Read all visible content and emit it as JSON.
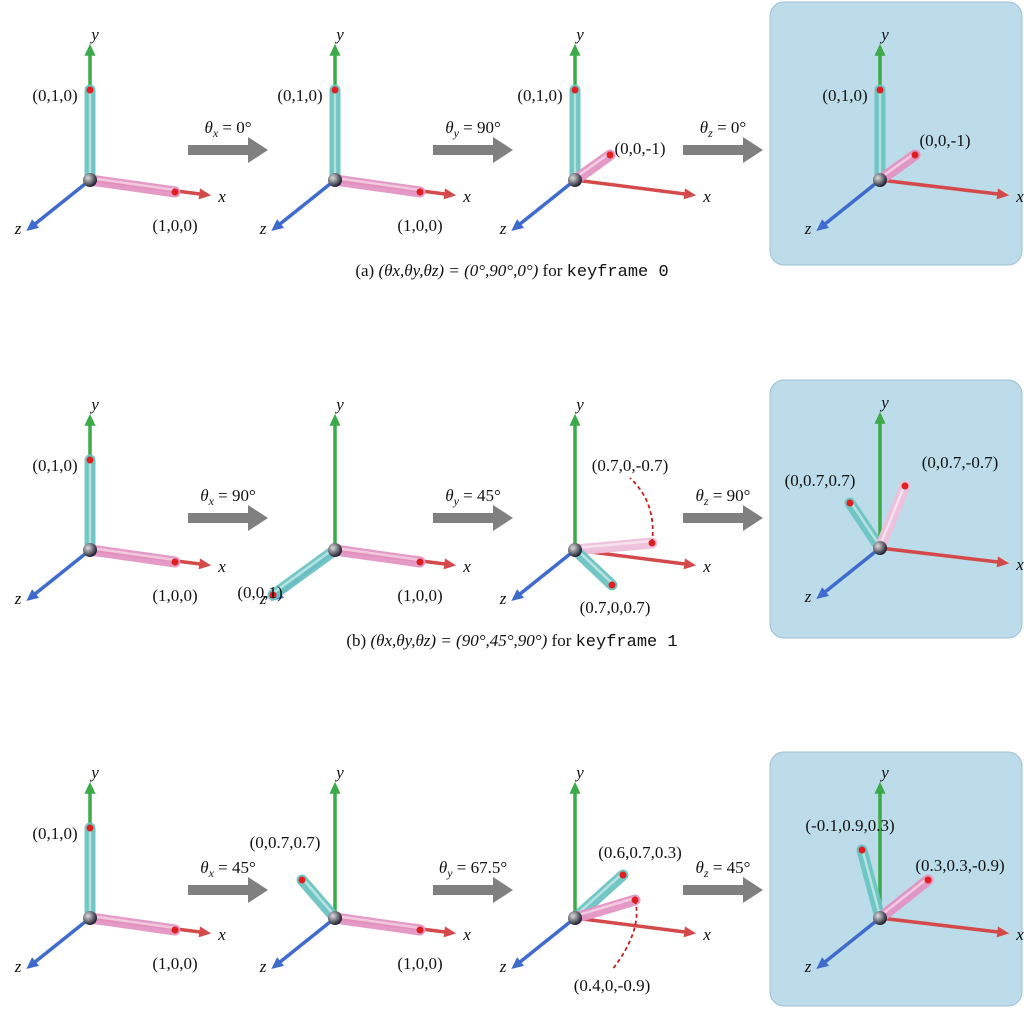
{
  "axis_labels": {
    "x": "x",
    "y": "y",
    "z": "z"
  },
  "rows": [
    {
      "panels": [
        {
          "points": [
            "(0,1,0)",
            "(1,0,0)"
          ]
        },
        {
          "points": [
            "(0,1,0)",
            "(1,0,0)"
          ]
        },
        {
          "points": [
            "(0,1,0)",
            "(0,0,-1)"
          ]
        },
        {
          "points": [
            "(0,1,0)",
            "(0,0,-1)"
          ]
        }
      ],
      "arrows": [
        {
          "var": "θ",
          "sub": "x",
          "eq": " = 0°"
        },
        {
          "var": "θ",
          "sub": "y",
          "eq": " = 90°"
        },
        {
          "var": "θ",
          "sub": "z",
          "eq": " = 0°"
        }
      ],
      "caption": {
        "label": "(a)",
        "math": "(θx,θy,θz) = (0°,90°,0°)",
        "text": "for",
        "code": "keyframe 0"
      }
    },
    {
      "panels": [
        {
          "points": [
            "(0,1,0)",
            "(1,0,0)"
          ]
        },
        {
          "points": [
            "(0,0,1)",
            "(1,0,0)"
          ]
        },
        {
          "points": [
            "(0.7,0,-0.7)",
            "(0.7,0,0.7)"
          ]
        },
        {
          "points": [
            "(0,0.7,0.7)",
            "(0,0.7,-0.7)"
          ]
        }
      ],
      "arrows": [
        {
          "var": "θ",
          "sub": "x",
          "eq": " = 90°"
        },
        {
          "var": "θ",
          "sub": "y",
          "eq": " = 45°"
        },
        {
          "var": "θ",
          "sub": "z",
          "eq": " = 90°"
        }
      ],
      "caption": {
        "label": "(b)",
        "math": "(θx,θy,θz) = (90°,45°,90°)",
        "text": "for",
        "code": "keyframe 1"
      }
    },
    {
      "panels": [
        {
          "points": [
            "(0,1,0)",
            "(1,0,0)"
          ]
        },
        {
          "points": [
            "(0,0.7,0.7)",
            "(1,0,0)"
          ]
        },
        {
          "points": [
            "(0.6,0.7,0.3)",
            "(0.4,0,-0.9)"
          ]
        },
        {
          "points": [
            "(-0.1,0.9,0.3)",
            "(0.3,0.3,-0.9)"
          ]
        }
      ],
      "arrows": [
        {
          "var": "θ",
          "sub": "x",
          "eq": " = 45°"
        },
        {
          "var": "θ",
          "sub": "y",
          "eq": " = 67.5°"
        },
        {
          "var": "θ",
          "sub": "z",
          "eq": " = 45°"
        }
      ]
    }
  ]
}
